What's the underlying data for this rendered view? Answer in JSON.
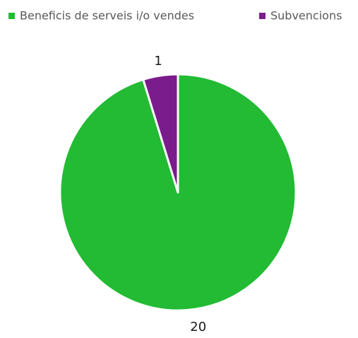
{
  "chart_data": {
    "type": "pie",
    "categories": [
      "Beneficis de serveis i/o vendes",
      "Subvencions"
    ],
    "values": [
      20,
      1
    ],
    "data_labels": [
      "20",
      "1"
    ],
    "colors": [
      "#22bb33",
      "#7b1c8c"
    ],
    "slice_border_color": "#ffffff",
    "legend_position": "top",
    "start_angle_deg": 0,
    "direction": "clockwise"
  }
}
